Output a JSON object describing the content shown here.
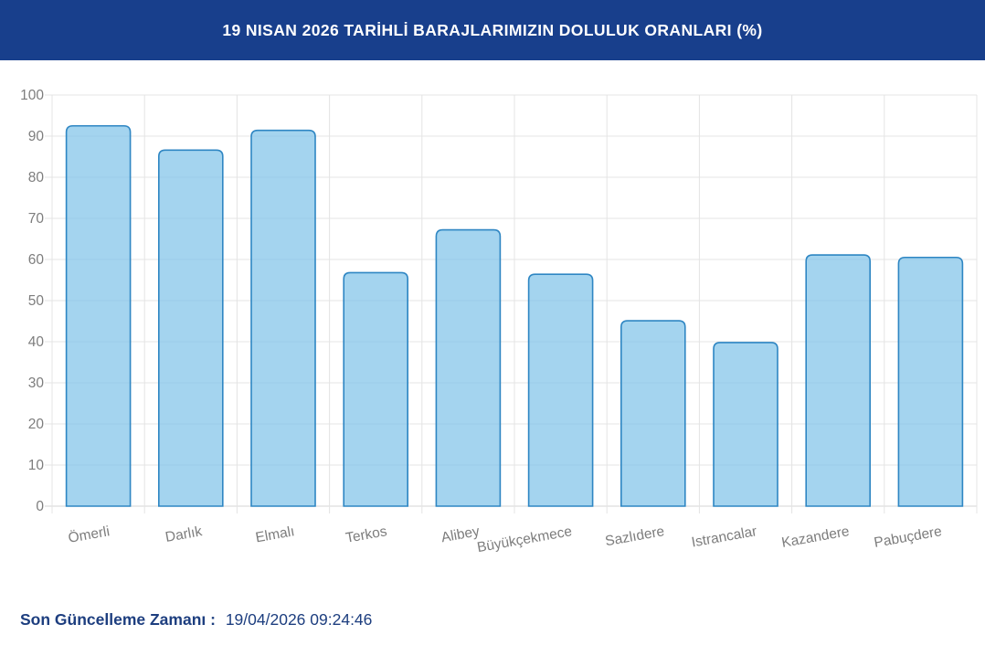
{
  "header": {
    "background_color": "#183f8c",
    "text_color": "#ffffff"
  },
  "chart_data": {
    "type": "bar",
    "title": "19 NISAN 2026 TARİHLİ BARAJLARIMIZIN DOLULUK ORANLARI (%)",
    "categories": [
      "Ömerli",
      "Darlık",
      "Elmalı",
      "Terkos",
      "Alibey",
      "Büyükçekmece",
      "Sazlıdere",
      "Istrancalar",
      "Kazandere",
      "Pabuçdere"
    ],
    "values": [
      92.5,
      86.6,
      91.4,
      56.8,
      67.2,
      56.4,
      45.1,
      39.8,
      61.1,
      60.5
    ],
    "xlabel": "",
    "ylabel": "",
    "ylim": [
      0,
      100
    ],
    "ytick_step": 10,
    "yticks": [
      0,
      10,
      20,
      30,
      40,
      50,
      60,
      70,
      80,
      90,
      100
    ],
    "grid": true,
    "legend": "none",
    "x_label_rotation_deg": -10,
    "colors": {
      "bar_fill": "#86c5ea",
      "bar_fill_opacity": 0.75,
      "bar_stroke": "#2e86c3",
      "grid_line": "#e4e4e4",
      "axis_line": "#d6d6d6",
      "axis_label": "#7d7d7d"
    }
  },
  "footer": {
    "label": "Son Güncelleme Zamanı :",
    "value": "19/04/2026 09:24:46",
    "text_color": "#1d3e7f"
  }
}
